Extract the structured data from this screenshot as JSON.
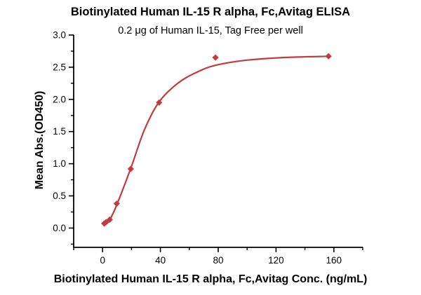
{
  "chart_data": {
    "type": "scatter",
    "title": "Biotinylated Human IL-15 R alpha, Fc,Avitag ELISA",
    "subtitle": "0.2 μg of Human IL-15, Tag Free per well",
    "xlabel": "Biotinylated Human IL-15 R alpha, Fc,Avitag Conc. (ng/mL)",
    "ylabel": "Mean Abs.(OD450)",
    "x": [
      1.2,
      2.4,
      4.9,
      9.8,
      19.5,
      39.1,
      78.1,
      156.3
    ],
    "y": [
      0.07,
      0.09,
      0.13,
      0.38,
      0.92,
      1.95,
      2.65,
      2.67
    ],
    "fit_curve": [
      [
        1.0,
        0.05
      ],
      [
        4.9,
        0.13
      ],
      [
        9.8,
        0.36
      ],
      [
        19.5,
        0.93
      ],
      [
        29,
        1.53
      ],
      [
        39.1,
        1.96
      ],
      [
        52,
        2.25
      ],
      [
        65,
        2.42
      ],
      [
        78.1,
        2.53
      ],
      [
        100,
        2.61
      ],
      [
        125,
        2.65
      ],
      [
        156.3,
        2.67
      ]
    ],
    "xlim": [
      -20,
      180
    ],
    "ylim": [
      -0.3,
      3.0
    ],
    "xticks": [
      0,
      40,
      80,
      120,
      160
    ],
    "yticks": [
      0.0,
      0.5,
      1.0,
      1.5,
      2.0,
      2.5,
      3.0
    ],
    "x_minor_step": 20,
    "y_minor_step": 0.25,
    "grid": false,
    "legend": null,
    "marker_shape": "diamond",
    "series_color": "#C23B3F",
    "axis_color": "#000000"
  }
}
